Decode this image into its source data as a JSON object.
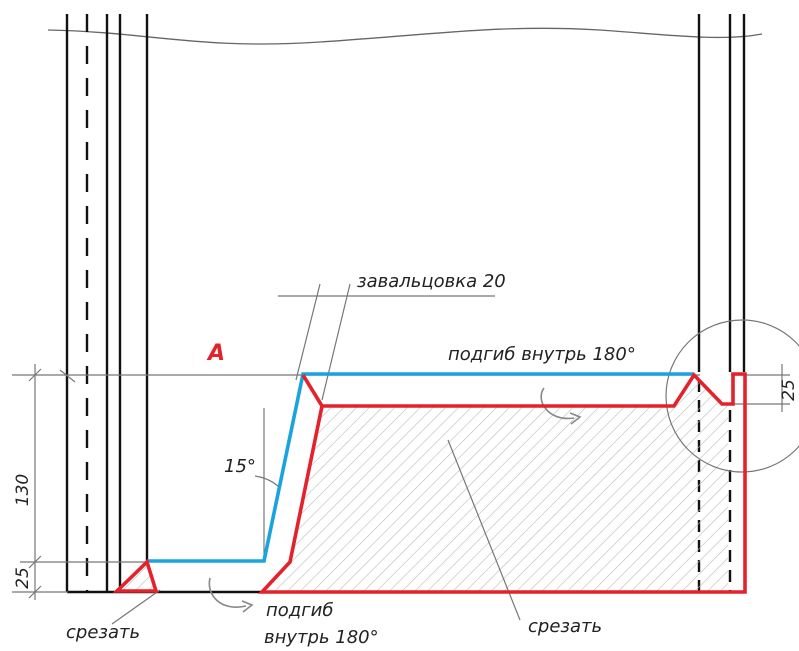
{
  "colors": {
    "cut_outline": "#e4222b",
    "fold_line": "#1ba3e0",
    "frame": "#111111",
    "guide": "#777777",
    "hatch": "#bbbbbb"
  },
  "labels": {
    "marker_a": "A",
    "seaming": "завальцовка 20",
    "fold_top": "подгиб внутрь 180°",
    "angle": "15°",
    "cut_left": "срезать",
    "fold_bottom_line1": "подгиб",
    "fold_bottom_line2": "внутрь 180°",
    "cut_right": "срезать"
  },
  "dimensions": {
    "height_total": "130",
    "height_bottom": "25",
    "height_right": "25"
  },
  "icons": {
    "fold_arrow": "curved-arrow-icon",
    "detail_circle": "detail-circle-icon"
  }
}
